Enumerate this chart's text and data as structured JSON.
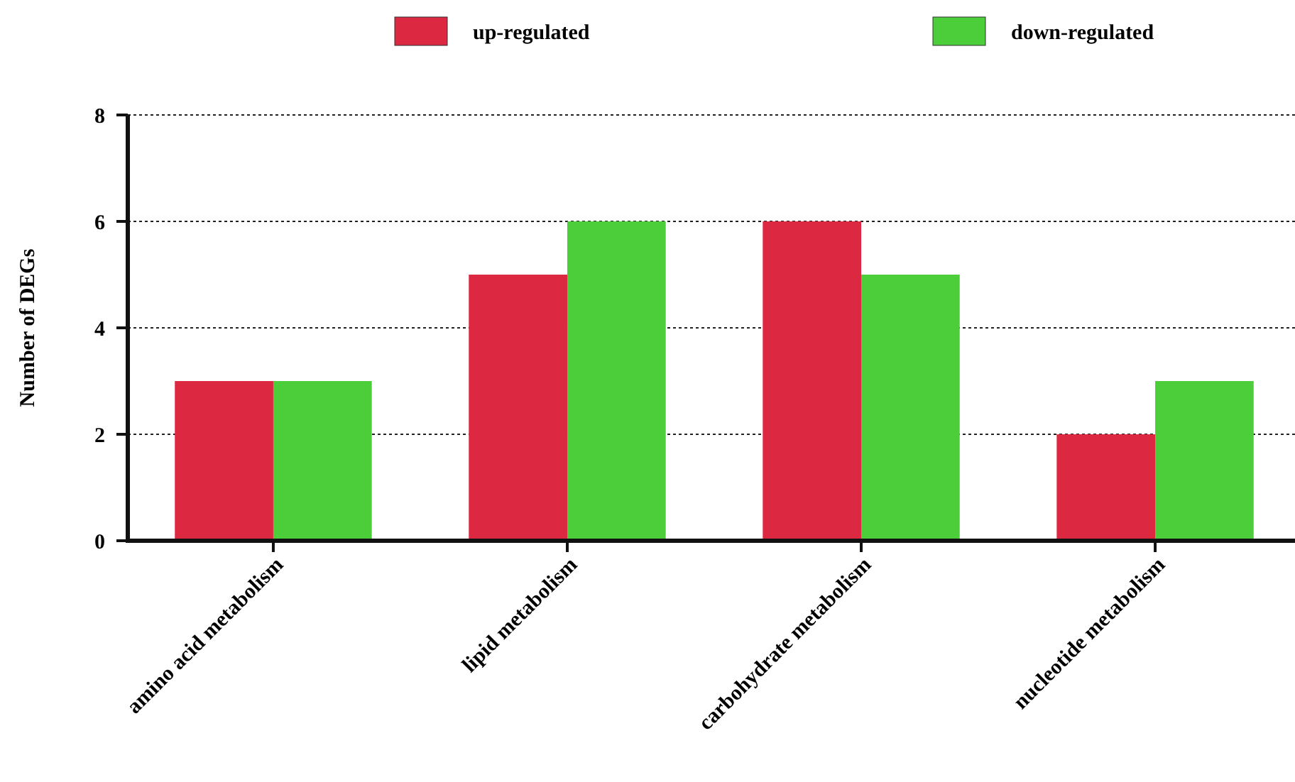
{
  "chart_data": {
    "type": "bar",
    "ylabel": "Number of DEGs",
    "categories": [
      "amino acid metabolism",
      "lipid metabolism",
      "carbohydrate metabolism",
      "nucleotide metabolism"
    ],
    "series": [
      {
        "name": "up-regulated",
        "color": "#dc2840",
        "values": [
          3,
          5,
          6,
          2
        ]
      },
      {
        "name": "down-regulated",
        "color": "#4cce3a",
        "values": [
          3,
          6,
          5,
          3
        ]
      }
    ],
    "ylim": [
      0,
      8
    ],
    "yticks": [
      0,
      2,
      4,
      6,
      8
    ],
    "grid": "y",
    "legend": "top"
  }
}
